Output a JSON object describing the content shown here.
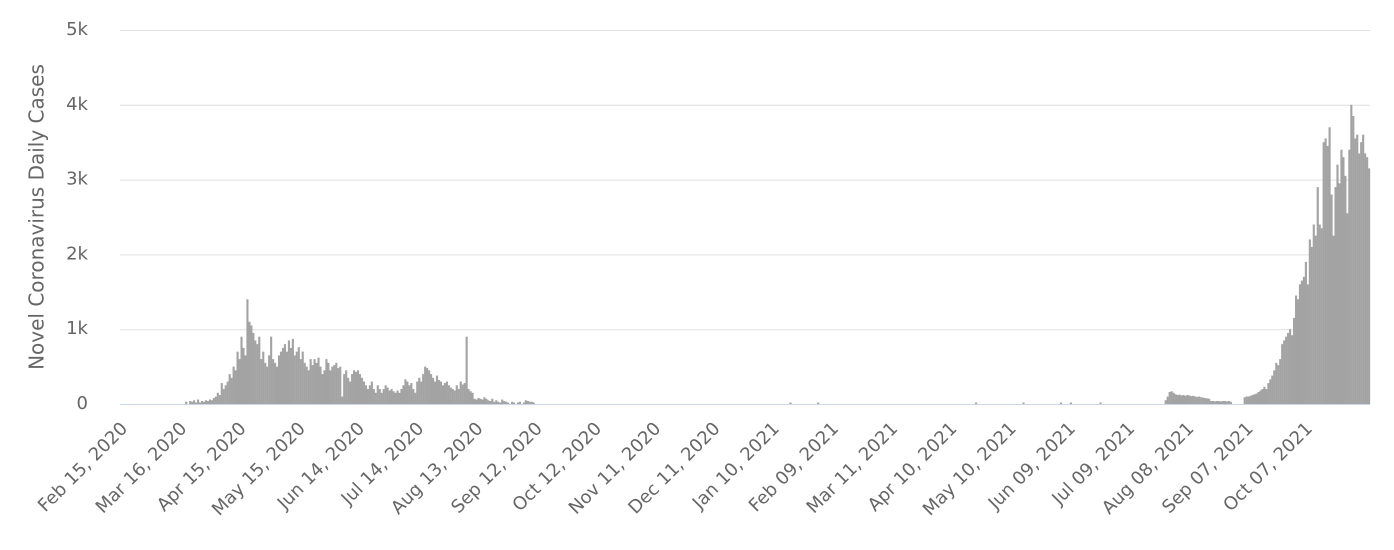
{
  "chart_data": {
    "type": "bar",
    "y_label": "Novel Coronavirus Daily Cases",
    "color": "#a3a3a3",
    "grid": true,
    "ylim": [
      0,
      5000
    ],
    "yticks": [
      0,
      {
        "value": 1000,
        "label": "1k"
      },
      {
        "value": 2000,
        "label": "2k"
      },
      {
        "value": 3000,
        "label": "3k"
      },
      {
        "value": 4000,
        "label": "4k"
      },
      {
        "value": 5000,
        "label": "5k"
      }
    ],
    "categories": [
      "Feb 15, 2020",
      null,
      null,
      null,
      null,
      null,
      null,
      null,
      null,
      null,
      null,
      null,
      null,
      null,
      null,
      null,
      null,
      null,
      null,
      null,
      null,
      null,
      null,
      null,
      null,
      null,
      null,
      null,
      null,
      null,
      "Mar 16, 2020",
      null,
      null,
      null,
      null,
      null,
      null,
      null,
      null,
      null,
      null,
      null,
      null,
      null,
      null,
      null,
      null,
      null,
      null,
      null,
      null,
      null,
      null,
      null,
      null,
      null,
      null,
      null,
      null,
      null,
      "Apr 15, 2020",
      null,
      null,
      null,
      null,
      null,
      null,
      null,
      null,
      null,
      null,
      null,
      null,
      null,
      null,
      null,
      null,
      null,
      null,
      null,
      null,
      null,
      null,
      null,
      null,
      null,
      null,
      null,
      null,
      null,
      "May 15, 2020",
      null,
      null,
      null,
      null,
      null,
      null,
      null,
      null,
      null,
      null,
      null,
      null,
      null,
      null,
      null,
      null,
      null,
      null,
      null,
      null,
      null,
      null,
      null,
      null,
      null,
      null,
      null,
      null,
      null,
      "Jun 14, 2020",
      null,
      null,
      null,
      null,
      null,
      null,
      null,
      null,
      null,
      null,
      null,
      null,
      null,
      null,
      null,
      null,
      null,
      null,
      null,
      null,
      null,
      null,
      null,
      null,
      null,
      null,
      null,
      null,
      null,
      "Jul 14, 2020",
      null,
      null,
      null,
      null,
      null,
      null,
      null,
      null,
      null,
      null,
      null,
      null,
      null,
      null,
      null,
      null,
      null,
      null,
      null,
      null,
      null,
      null,
      null,
      null,
      null,
      null,
      null,
      null,
      null,
      "Aug 13, 2020",
      null,
      null,
      null,
      null,
      null,
      null,
      null,
      null,
      null,
      null,
      null,
      null,
      null,
      null,
      null,
      null,
      null,
      null,
      null,
      null,
      null,
      null,
      null,
      null,
      null,
      null,
      null,
      null,
      null,
      "Sep 12, 2020",
      null,
      null,
      null,
      null,
      null,
      null,
      null,
      null,
      null,
      null,
      null,
      null,
      null,
      null,
      null,
      null,
      null,
      null,
      null,
      null,
      null,
      null,
      null,
      null,
      null,
      null,
      null,
      null,
      null,
      "Oct 12, 2020",
      null,
      null,
      null,
      null,
      null,
      null,
      null,
      null,
      null,
      null,
      null,
      null,
      null,
      null,
      null,
      null,
      null,
      null,
      null,
      null,
      null,
      null,
      null,
      null,
      null,
      null,
      null,
      null,
      null,
      "Nov 11, 2020",
      null,
      null,
      null,
      null,
      null,
      null,
      null,
      null,
      null,
      null,
      null,
      null,
      null,
      null,
      null,
      null,
      null,
      null,
      null,
      null,
      null,
      null,
      null,
      null,
      null,
      null,
      null,
      null,
      null,
      "Dec 11, 2020",
      null,
      null,
      null,
      null,
      null,
      null,
      null,
      null,
      null,
      null,
      null,
      null,
      null,
      null,
      null,
      null,
      null,
      null,
      null,
      null,
      null,
      null,
      null,
      null,
      null,
      null,
      null,
      null,
      null,
      "Jan 10, 2021",
      null,
      null,
      null,
      null,
      null,
      null,
      null,
      null,
      null,
      null,
      null,
      null,
      null,
      null,
      null,
      null,
      null,
      null,
      null,
      null,
      null,
      null,
      null,
      null,
      null,
      null,
      null,
      null,
      null,
      "Feb 09, 2021",
      null,
      null,
      null,
      null,
      null,
      null,
      null,
      null,
      null,
      null,
      null,
      null,
      null,
      null,
      null,
      null,
      null,
      null,
      null,
      null,
      null,
      null,
      null,
      null,
      null,
      null,
      null,
      null,
      null,
      "Mar 11, 2021",
      null,
      null,
      null,
      null,
      null,
      null,
      null,
      null,
      null,
      null,
      null,
      null,
      null,
      null,
      null,
      null,
      null,
      null,
      null,
      null,
      null,
      null,
      null,
      null,
      null,
      null,
      null,
      null,
      null,
      "Apr 10, 2021",
      null,
      null,
      null,
      null,
      null,
      null,
      null,
      null,
      null,
      null,
      null,
      null,
      null,
      null,
      null,
      null,
      null,
      null,
      null,
      null,
      null,
      null,
      null,
      null,
      null,
      null,
      null,
      null,
      null,
      "May 10, 2021",
      null,
      null,
      null,
      null,
      null,
      null,
      null,
      null,
      null,
      null,
      null,
      null,
      null,
      null,
      null,
      null,
      null,
      null,
      null,
      null,
      null,
      null,
      null,
      null,
      null,
      null,
      null,
      null,
      null,
      "Jun 09, 2021",
      null,
      null,
      null,
      null,
      null,
      null,
      null,
      null,
      null,
      null,
      null,
      null,
      null,
      null,
      null,
      null,
      null,
      null,
      null,
      null,
      null,
      null,
      null,
      null,
      null,
      null,
      null,
      null,
      null,
      "Jul 09, 2021",
      null,
      null,
      null,
      null,
      null,
      null,
      null,
      null,
      null,
      null,
      null,
      null,
      null,
      null,
      null,
      null,
      null,
      null,
      null,
      null,
      null,
      null,
      null,
      null,
      null,
      null,
      null,
      null,
      null,
      "Aug 08, 2021",
      null,
      null,
      null,
      null,
      null,
      null,
      null,
      null,
      null,
      null,
      null,
      null,
      null,
      null,
      null,
      null,
      null,
      null,
      null,
      null,
      null,
      null,
      null,
      null,
      null,
      null,
      null,
      null,
      null,
      "Sep 07, 2021",
      null,
      null,
      null,
      null,
      null,
      null,
      null,
      null,
      null,
      null,
      null,
      null,
      null,
      null,
      null,
      null,
      null,
      null,
      null,
      null,
      null,
      null,
      null,
      null,
      null,
      null,
      null,
      null,
      null,
      "Oct 07, 2021",
      null,
      null,
      null,
      null,
      null,
      null,
      null,
      null,
      null,
      null,
      null,
      null,
      null,
      null,
      null,
      null,
      null,
      null,
      null,
      null,
      null,
      null,
      null,
      null,
      null,
      null,
      null,
      null,
      null,
      null,
      null,
      null
    ],
    "values": [
      0,
      0,
      0,
      0,
      0,
      0,
      0,
      0,
      0,
      0,
      0,
      0,
      0,
      0,
      0,
      0,
      0,
      0,
      0,
      0,
      0,
      0,
      0,
      0,
      0,
      0,
      0,
      0,
      0,
      0,
      0,
      0,
      0,
      30,
      0,
      40,
      30,
      50,
      20,
      60,
      20,
      40,
      30,
      50,
      40,
      60,
      50,
      80,
      100,
      150,
      120,
      280,
      200,
      250,
      300,
      400,
      350,
      500,
      450,
      700,
      600,
      900,
      750,
      650,
      1400,
      1100,
      1050,
      950,
      850,
      800,
      900,
      600,
      700,
      550,
      500,
      650,
      900,
      600,
      550,
      500,
      650,
      700,
      750,
      800,
      700,
      850,
      750,
      870,
      650,
      700,
      760,
      600,
      700,
      550,
      500,
      450,
      600,
      520,
      600,
      550,
      620,
      500,
      400,
      450,
      600,
      550,
      450,
      500,
      520,
      550,
      480,
      500,
      100,
      400,
      450,
      350,
      300,
      400,
      450,
      430,
      450,
      400,
      350,
      300,
      250,
      200,
      250,
      300,
      200,
      150,
      250,
      200,
      150,
      200,
      250,
      220,
      180,
      200,
      170,
      150,
      180,
      150,
      200,
      250,
      330,
      300,
      250,
      280,
      200,
      150,
      300,
      350,
      300,
      400,
      500,
      480,
      450,
      400,
      350,
      300,
      380,
      320,
      300,
      250,
      280,
      300,
      250,
      220,
      200,
      180,
      250,
      200,
      300,
      260,
      280,
      900,
      200,
      170,
      150,
      70,
      60,
      80,
      70,
      60,
      90,
      70,
      50,
      40,
      70,
      30,
      50,
      30,
      20,
      60,
      40,
      30,
      20,
      0,
      30,
      20,
      0,
      20,
      30,
      0,
      20,
      50,
      40,
      30,
      30,
      20,
      0,
      0,
      0,
      0,
      0,
      0,
      0,
      0,
      0,
      0,
      0,
      0,
      0,
      0,
      0,
      0,
      0,
      0,
      0,
      0,
      0,
      0,
      0,
      0,
      0,
      0,
      0,
      0,
      0,
      0,
      0,
      0,
      0,
      0,
      0,
      0,
      0,
      0,
      0,
      0,
      0,
      0,
      0,
      0,
      0,
      0,
      0,
      0,
      0,
      0,
      0,
      0,
      0,
      0,
      0,
      0,
      0,
      0,
      0,
      0,
      0,
      0,
      0,
      0,
      0,
      0,
      0,
      0,
      0,
      0,
      0,
      0,
      0,
      0,
      0,
      0,
      0,
      0,
      0,
      0,
      0,
      0,
      0,
      0,
      0,
      0,
      0,
      0,
      0,
      0,
      0,
      0,
      0,
      0,
      0,
      0,
      0,
      0,
      0,
      0,
      0,
      0,
      0,
      0,
      0,
      0,
      0,
      0,
      0,
      0,
      0,
      0,
      0,
      0,
      0,
      0,
      0,
      0,
      0,
      0,
      0,
      0,
      0,
      0,
      0,
      0,
      0,
      0,
      0,
      20,
      0,
      0,
      0,
      0,
      0,
      0,
      0,
      0,
      0,
      0,
      0,
      0,
      0,
      20,
      0,
      0,
      0,
      0,
      0,
      0,
      0,
      0,
      0,
      0,
      0,
      0,
      0,
      0,
      0,
      0,
      0,
      0,
      0,
      0,
      0,
      0,
      0,
      0,
      0,
      0,
      0,
      0,
      0,
      0,
      0,
      0,
      0,
      0,
      0,
      0,
      0,
      0,
      0,
      0,
      0,
      0,
      0,
      0,
      0,
      0,
      0,
      0,
      0,
      0,
      0,
      0,
      0,
      0,
      0,
      0,
      0,
      0,
      0,
      0,
      0,
      0,
      0,
      0,
      0,
      0,
      0,
      0,
      0,
      0,
      0,
      0,
      0,
      0,
      0,
      0,
      0,
      0,
      0,
      20,
      0,
      0,
      0,
      0,
      0,
      0,
      0,
      0,
      0,
      0,
      0,
      0,
      0,
      0,
      0,
      0,
      0,
      0,
      0,
      0,
      0,
      0,
      0,
      20,
      0,
      0,
      0,
      0,
      0,
      0,
      0,
      0,
      0,
      0,
      0,
      0,
      0,
      0,
      0,
      0,
      0,
      0,
      20,
      0,
      0,
      0,
      0,
      20,
      0,
      0,
      0,
      0,
      0,
      0,
      0,
      0,
      0,
      0,
      0,
      0,
      0,
      0,
      20,
      0,
      0,
      0,
      0,
      0,
      0,
      0,
      0,
      0,
      0,
      0,
      0,
      0,
      0,
      0,
      0,
      0,
      0,
      0,
      0,
      0,
      0,
      0,
      0,
      0,
      0,
      0,
      0,
      0,
      0,
      0,
      0,
      50,
      100,
      160,
      170,
      150,
      130,
      120,
      125,
      115,
      120,
      110,
      120,
      115,
      105,
      110,
      100,
      95,
      100,
      90,
      85,
      80,
      75,
      70,
      40,
      40,
      35,
      40,
      40,
      35,
      40,
      40,
      35,
      40,
      30,
      0,
      0,
      0,
      0,
      0,
      0,
      90,
      100,
      100,
      110,
      120,
      130,
      140,
      160,
      180,
      200,
      230,
      200,
      280,
      330,
      380,
      450,
      550,
      520,
      600,
      800,
      850,
      900,
      950,
      1000,
      920,
      1150,
      1450,
      1400,
      1600,
      1650,
      1700,
      1900,
      1600,
      2200,
      2100,
      2400,
      2250,
      2900,
      2400,
      2350,
      3500,
      3550,
      3450,
      3700,
      2800,
      2250,
      2900,
      3200,
      2950,
      3400,
      3300,
      3050,
      2550,
      3400,
      4000,
      3850,
      3550,
      3600,
      3350,
      3500,
      3600,
      3350,
      3300,
      3150
    ]
  }
}
